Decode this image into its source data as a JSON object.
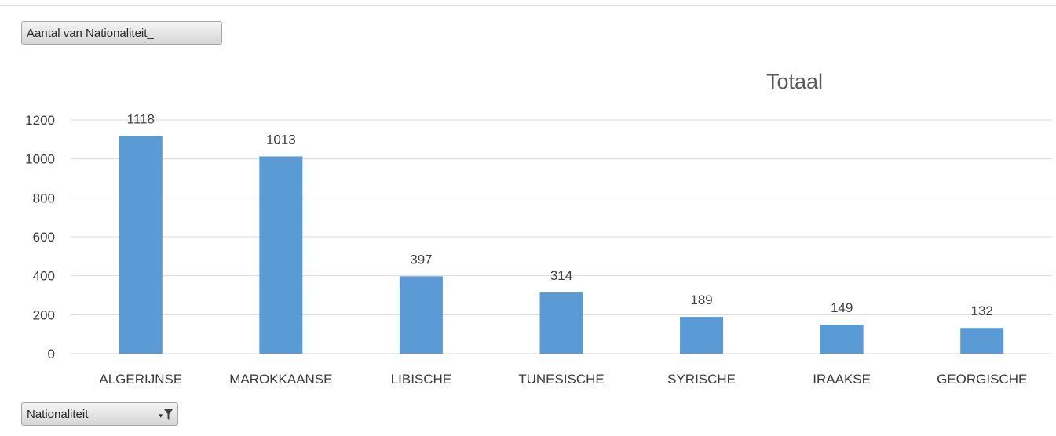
{
  "pivot": {
    "values_field_label": "Aantal van Nationaliteit_",
    "axis_field_label": "Nationaliteit_"
  },
  "colors": {
    "bar": "#5b9bd5",
    "grid": "#d9d9d9",
    "button_border": "#a6a6a6"
  },
  "icons": {
    "axis_field_filter": "filter-icon"
  },
  "chart_data": {
    "type": "bar",
    "title": "Totaal",
    "legend": "none",
    "categories": [
      "ALGERIJNSE",
      "MAROKKAANSE",
      "LIBISCHE",
      "TUNESISCHE",
      "SYRISCHE",
      "IRAAKSE",
      "GEORGISCHE"
    ],
    "series": [
      {
        "values": [
          1118,
          1013,
          397,
          314,
          189,
          149,
          132
        ]
      }
    ],
    "data_labels": [
      "1118",
      "1013",
      "397",
      "314",
      "189",
      "149",
      "132"
    ],
    "y_ticks": [
      "0",
      "200",
      "400",
      "600",
      "800",
      "1000",
      "1200"
    ],
    "ylim": [
      0,
      1200
    ],
    "grid": true
  }
}
